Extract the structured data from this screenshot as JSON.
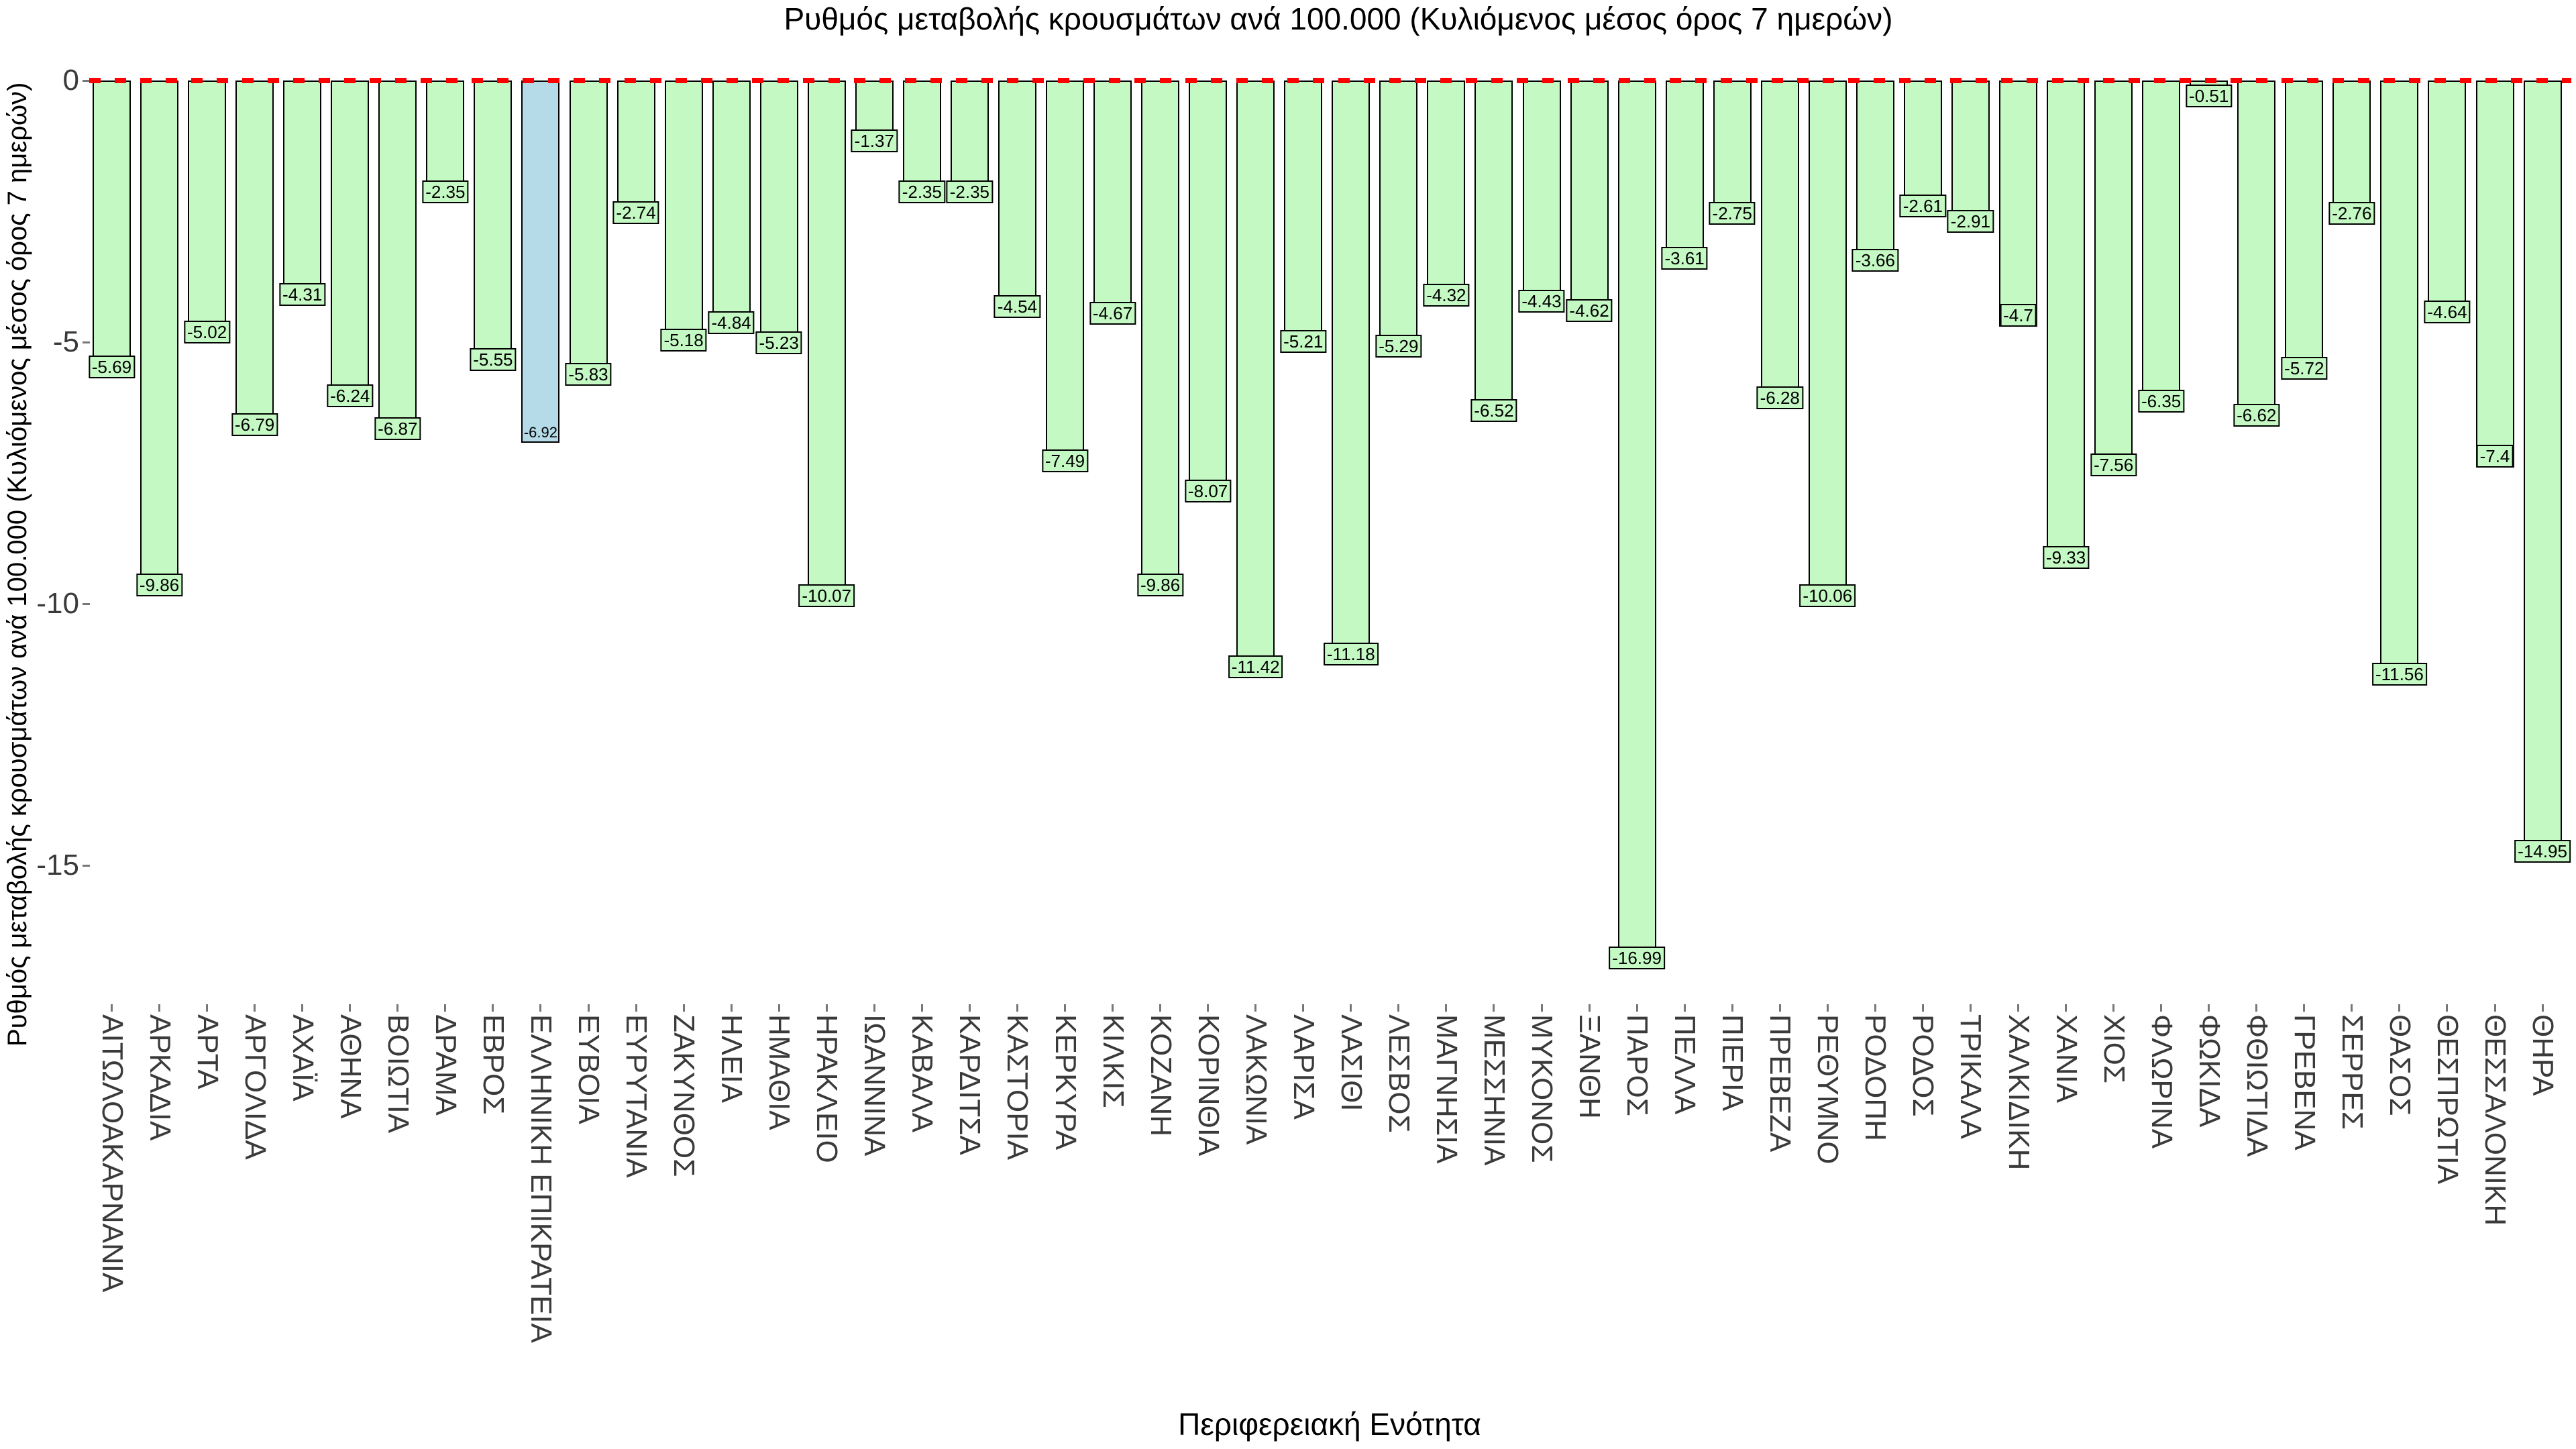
{
  "figure": {
    "title": "Ρυθμός μεταβολής κρουσμάτων ανά 100.000 (Κυλιόμενος μέσος όρος 7 ημερών)",
    "x_axis_title": "Περιφερειακή Ενότητα",
    "y_axis_title": "Ρυθμός μεταβολής κρουσμάτων ανά 100.000 (Κυλιόμενος μέσος όρος 7 ημερών)"
  },
  "chart_data": {
    "type": "bar",
    "title": "Ρυθμός μεταβολής κρουσμάτων ανά 100.000 (Κυλιόμενος μέσος όρος 7 ημερών)",
    "xlabel": "Περιφερειακή Ενότητα",
    "ylabel": "Ρυθμός μεταβολής κρουσμάτων ανά 100.000 (Κυλιόμενος μέσος όρος 7 ημερών)",
    "categories": [
      "ΑΙΤΩΛΟΑΚΑΡΝΑΝΙΑ",
      "ΑΡΚΑΔΙΑ",
      "ΑΡΤΑ",
      "ΑΡΓΟΛΙΔΑ",
      "ΑΧΑΪΑ",
      "ΑΘΗΝΑ",
      "ΒΟΙΩΤΙΑ",
      "ΔΡΑΜΑ",
      "ΕΒΡΟΣ",
      "ΕΛΛΗΝΙΚΗ ΕΠΙΚΡΑΤΕΙΑ",
      "ΕΥΒΟΙΑ",
      "ΕΥΡΥΤΑΝΙΑ",
      "ΖΑΚΥΝΘΟΣ",
      "ΗΛΕΙΑ",
      "ΗΜΑΘΙΑ",
      "ΗΡΑΚΛΕΙΟ",
      "ΙΩΑΝΝΙΝΑ",
      "ΚΑΒΑΛΑ",
      "ΚΑΡΔΙΤΣΑ",
      "ΚΑΣΤΟΡΙΑ",
      "ΚΕΡΚΥΡΑ",
      "ΚΙΛΚΙΣ",
      "ΚΟΖΑΝΗ",
      "ΚΟΡΙΝΘΙΑ",
      "ΛΑΚΩΝΙΑ",
      "ΛΑΡΙΣΑ",
      "ΛΑΣΙΘΙ",
      "ΛΕΣΒΟΣ",
      "ΜΑΓΝΗΣΙΑ",
      "ΜΕΣΣΗΝΙΑ",
      "ΜΥΚΟΝΟΣ",
      "ΞΑΝΘΗ",
      "ΠΑΡΟΣ",
      "ΠΕΛΛΑ",
      "ΠΙΕΡΙΑ",
      "ΠΡΕΒΕΖΑ",
      "ΡΕΘΥΜΝΟ",
      "ΡΟΔΟΠΗ",
      "ΡΟΔΟΣ",
      "ΤΡΙΚΑΛΑ",
      "ΧΑΛΚΙΔΙΚΗ",
      "ΧΑΝΙΑ",
      "ΧΙΟΣ",
      "ΦΛΩΡΙΝΑ",
      "ΦΩΚΙΔΑ",
      "ΦΘΙΩΤΙΔΑ",
      "ΓΡΕΒΕΝΑ",
      "ΣΕΡΡΕΣ",
      "ΘΑΣΟΣ",
      "ΘΕΣΠΡΩΤΙΑ",
      "ΘΕΣΣΑΛΟΝΙΚΗ",
      "ΘΗΡΑ"
    ],
    "values": [
      -5.69,
      -9.86,
      -5.02,
      -6.79,
      -4.31,
      -6.24,
      -6.87,
      -2.35,
      -5.55,
      -6.92,
      -5.83,
      -2.74,
      -5.18,
      -4.84,
      -5.23,
      -10.07,
      -1.37,
      -2.35,
      -2.35,
      -4.54,
      -7.49,
      -4.67,
      -9.86,
      -8.07,
      -11.42,
      -5.21,
      -11.18,
      -5.29,
      -4.32,
      -6.52,
      -4.43,
      -4.62,
      -16.99,
      -3.61,
      -2.75,
      -6.28,
      -10.06,
      -3.66,
      -2.61,
      -2.91,
      -4.7,
      -9.33,
      -7.56,
      -6.35,
      -0.51,
      -6.62,
      -5.72,
      -2.76,
      -11.56,
      -4.64,
      -7.4,
      -14.95
    ],
    "highlight_category": "ΕΛΛΗΝΙΚΗ ΕΠΙΚΡΑΤΕΙΑ",
    "y_ticks": [
      0,
      -5,
      -10,
      -15
    ],
    "ylim": [
      -17.6,
      0.45
    ],
    "zero_line": {
      "value": 0,
      "style": "dashed",
      "color": "#FF0000"
    },
    "grid": false,
    "legend": "none",
    "colors": {
      "bar_fill": "#C5F9C4",
      "highlight_fill": "#B5DBE9",
      "bar_border": "#000000",
      "value_label_text": "#000000",
      "axis_tick_text": "#3A3A3A",
      "category_text": "#3A3A3A",
      "tick_mark": "#777777",
      "zero_line": "#FF0000",
      "background": "#FFFFFF"
    }
  }
}
